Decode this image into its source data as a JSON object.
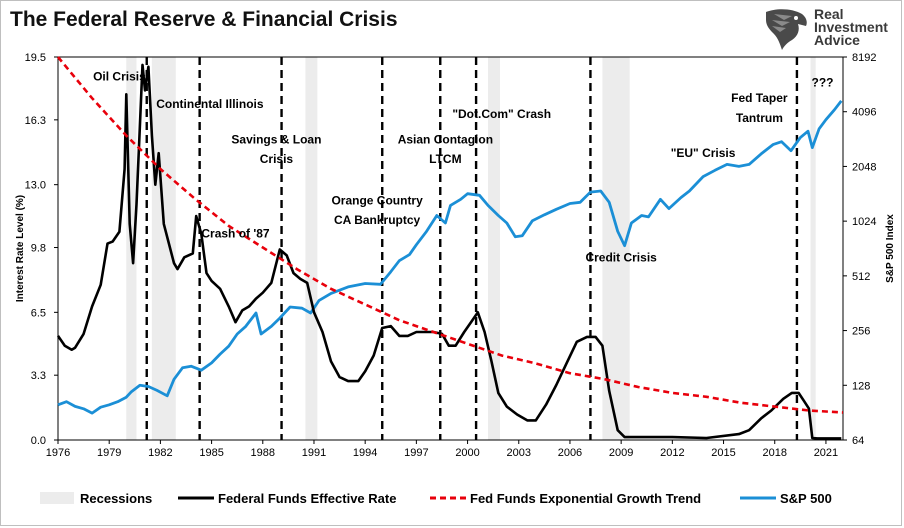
{
  "title": "The Federal Reserve & Financial Crisis",
  "logo": {
    "line1": "Real",
    "line2": "Investment",
    "line3": "Advice",
    "icon": "eagle-head-icon"
  },
  "chart_data": {
    "type": "line",
    "title": "The Federal Reserve & Financial Crisis",
    "xlabel": "",
    "ylabel_left": "Interest Rate Level (%)",
    "ylabel_right": "S&P 500 Index",
    "xlim": [
      1976,
      2022
    ],
    "ylim_left": [
      0,
      19.5
    ],
    "ylim_right": [
      64,
      8192
    ],
    "right_scale": "log2",
    "x_ticks": [
      "1976",
      "1979",
      "1982",
      "1985",
      "1988",
      "1991",
      "1994",
      "1997",
      "2000",
      "2003",
      "2006",
      "2009",
      "2012",
      "2015",
      "2018",
      "2021"
    ],
    "y_ticks_left": [
      "0.0",
      "3.3",
      "6.5",
      "9.8",
      "13.0",
      "16.3",
      "19.5"
    ],
    "y_ticks_right": [
      "64",
      "128",
      "256",
      "512",
      "1024",
      "2048",
      "4096",
      "8192"
    ],
    "colors": {
      "fed_funds": "#000000",
      "trend": "#e8000b",
      "sp500": "#1b8fd6",
      "recession": "#ececec",
      "event_line": "#000000"
    },
    "recessions": [
      [
        1980.0,
        1980.6
      ],
      [
        1981.5,
        1982.9
      ],
      [
        1990.5,
        1991.2
      ],
      [
        2001.2,
        2001.9
      ],
      [
        2007.9,
        2009.5
      ],
      [
        2020.1,
        2020.4
      ]
    ],
    "event_lines": [
      1981.2,
      1984.3,
      1989.1,
      1995.0,
      1998.4,
      2000.5,
      2007.2,
      2019.3
    ],
    "annotations": [
      {
        "text": "Oil Crisis",
        "x": 1979.6,
        "y": 18.3
      },
      {
        "text": "Continental Illinois",
        "x": 1984.9,
        "y": 16.9
      },
      {
        "text": "Crash of '87",
        "x": 1986.4,
        "y": 10.3
      },
      {
        "text": "Savings & Loan",
        "x": 1988.8,
        "y": 15.1
      },
      {
        "text": "Crisis",
        "x": 1988.8,
        "y": 14.1
      },
      {
        "text": "Orange Country",
        "x": 1994.7,
        "y": 12.0
      },
      {
        "text": "CA Bankruptcy",
        "x": 1994.7,
        "y": 11.0
      },
      {
        "text": "Asian Contagion",
        "x": 1998.7,
        "y": 15.1
      },
      {
        "text": "LTCM",
        "x": 1998.7,
        "y": 14.1
      },
      {
        "text": "\"Dot.Com\" Crash",
        "x": 2002.0,
        "y": 16.4
      },
      {
        "text": "Credit Crisis",
        "x": 2009.0,
        "y": 9.1
      },
      {
        "text": "\"EU\" Crisis",
        "x": 2013.8,
        "y": 14.4
      },
      {
        "text": "Fed Taper",
        "x": 2017.1,
        "y": 17.2
      },
      {
        "text": "Tantrum",
        "x": 2017.1,
        "y": 16.2
      },
      {
        "text": "???",
        "x": 2020.8,
        "y": 18.0
      }
    ],
    "legend_position": "bottom",
    "series": [
      {
        "name": "Federal Funds Effective Rate",
        "axis": "left",
        "style": "solid",
        "x": [
          1976.0,
          1976.4,
          1976.8,
          1977.0,
          1977.5,
          1978.0,
          1978.5,
          1978.9,
          1979.2,
          1979.6,
          1979.9,
          1980.0,
          1980.2,
          1980.4,
          1980.6,
          1980.8,
          1980.95,
          1981.1,
          1981.3,
          1981.5,
          1981.7,
          1981.9,
          1982.2,
          1982.5,
          1982.8,
          1983.0,
          1983.4,
          1983.9,
          1984.1,
          1984.4,
          1984.7,
          1985.0,
          1985.5,
          1986.0,
          1986.4,
          1986.8,
          1987.2,
          1987.6,
          1988.0,
          1988.5,
          1989.0,
          1989.4,
          1989.8,
          1990.2,
          1990.6,
          1991.0,
          1991.5,
          1992.0,
          1992.5,
          1993.0,
          1993.6,
          1994.0,
          1994.5,
          1995.0,
          1995.5,
          1996.0,
          1996.5,
          1997.0,
          1997.6,
          1998.0,
          1998.5,
          1998.9,
          1999.3,
          1999.8,
          2000.2,
          2000.6,
          2001.0,
          2001.4,
          2001.8,
          2002.3,
          2002.9,
          2003.5,
          2004.0,
          2004.6,
          2005.2,
          2005.8,
          2006.4,
          2007.0,
          2007.5,
          2007.9,
          2008.3,
          2008.8,
          2009.2,
          2010.0,
          2012.0,
          2014.0,
          2015.9,
          2016.5,
          2017.2,
          2017.8,
          2018.5,
          2019.0,
          2019.4,
          2019.7,
          2020.0,
          2020.2,
          2020.5,
          2021.5,
          2021.9
        ],
        "values": [
          5.3,
          4.8,
          4.6,
          4.7,
          5.4,
          6.8,
          7.9,
          10.0,
          10.1,
          10.6,
          13.8,
          17.6,
          11.0,
          9.0,
          12.0,
          16.0,
          19.1,
          17.8,
          19.0,
          15.5,
          13.0,
          14.6,
          11.0,
          10.0,
          9.0,
          8.7,
          9.3,
          9.5,
          11.4,
          10.5,
          8.5,
          8.1,
          7.7,
          6.8,
          6.0,
          6.6,
          6.8,
          7.2,
          7.5,
          8.0,
          9.7,
          9.4,
          8.5,
          8.2,
          8.0,
          6.5,
          5.5,
          4.0,
          3.2,
          3.0,
          3.0,
          3.5,
          4.3,
          5.7,
          5.8,
          5.3,
          5.3,
          5.5,
          5.5,
          5.5,
          5.4,
          4.8,
          4.8,
          5.5,
          6.0,
          6.5,
          5.5,
          4.0,
          2.4,
          1.7,
          1.3,
          1.0,
          1.0,
          1.8,
          2.8,
          3.9,
          5.0,
          5.25,
          5.25,
          4.8,
          2.5,
          0.5,
          0.15,
          0.15,
          0.15,
          0.1,
          0.3,
          0.5,
          1.1,
          1.5,
          2.1,
          2.4,
          2.4,
          2.0,
          1.6,
          0.1,
          0.08,
          0.08,
          0.08
        ]
      },
      {
        "name": "Fed Funds Exponential Growth Trend",
        "axis": "left",
        "style": "dashed",
        "a": 19.5,
        "k": 0.0572,
        "x0": 1976,
        "x": [
          1976,
          1978,
          1980,
          1982,
          1984,
          1986,
          1988,
          1990,
          1992,
          1994,
          1996,
          1998,
          2000,
          2002,
          2004,
          2006,
          2008,
          2010,
          2012,
          2014,
          2016,
          2018,
          2020,
          2022
        ],
        "values": [
          19.5,
          17.4,
          15.5,
          13.8,
          12.3,
          10.9,
          9.8,
          8.7,
          7.7,
          6.9,
          6.1,
          5.5,
          4.9,
          4.3,
          3.9,
          3.4,
          3.1,
          2.7,
          2.4,
          2.2,
          1.9,
          1.7,
          1.5,
          1.4
        ]
      },
      {
        "name": "S&P 500",
        "axis": "right",
        "style": "solid",
        "x": [
          1976.0,
          1976.5,
          1977.0,
          1977.5,
          1978.0,
          1978.5,
          1979.0,
          1979.5,
          1980.0,
          1980.3,
          1980.8,
          1981.3,
          1981.8,
          1982.4,
          1982.8,
          1983.3,
          1983.8,
          1984.4,
          1985.0,
          1985.5,
          1986.0,
          1986.5,
          1987.0,
          1987.6,
          1987.9,
          1988.5,
          1989.0,
          1989.6,
          1990.3,
          1990.8,
          1991.3,
          1992.0,
          1993.0,
          1994.0,
          1994.9,
          1995.5,
          1996.0,
          1996.6,
          1997.0,
          1997.6,
          1998.2,
          1998.7,
          1999.0,
          1999.6,
          2000.0,
          2000.7,
          2001.2,
          2001.8,
          2002.3,
          2002.8,
          2003.2,
          2003.8,
          2004.5,
          2005.2,
          2006.0,
          2006.6,
          2007.2,
          2007.8,
          2008.3,
          2008.8,
          2009.2,
          2009.6,
          2010.2,
          2010.6,
          2011.3,
          2011.8,
          2012.5,
          2013.0,
          2013.8,
          2014.5,
          2015.2,
          2015.9,
          2016.5,
          2017.2,
          2017.9,
          2018.4,
          2018.95,
          2019.5,
          2019.95,
          2020.2,
          2020.6,
          2021.0,
          2021.5,
          2021.9
        ],
        "values": [
          100,
          104,
          98,
          95,
          90,
          97,
          100,
          104,
          110,
          118,
          128,
          126,
          120,
          112,
          138,
          160,
          163,
          155,
          170,
          190,
          210,
          245,
          270,
          320,
          245,
          270,
          300,
          345,
          340,
          320,
          375,
          410,
          445,
          465,
          460,
          540,
          620,
          670,
          760,
          900,
          1100,
          1000,
          1250,
          1350,
          1450,
          1420,
          1250,
          1100,
          1000,
          840,
          850,
          1030,
          1110,
          1190,
          1280,
          1300,
          1480,
          1500,
          1300,
          900,
          750,
          1000,
          1100,
          1080,
          1350,
          1200,
          1380,
          1500,
          1800,
          1950,
          2100,
          2050,
          2100,
          2400,
          2700,
          2800,
          2500,
          2950,
          3200,
          2600,
          3300,
          3700,
          4200,
          4700
        ]
      }
    ]
  },
  "legend": [
    {
      "label": "Recessions",
      "swatch": "recession"
    },
    {
      "label": "Federal Funds Effective Rate",
      "swatch": "fed_funds"
    },
    {
      "label": "Fed Funds Exponential Growth Trend",
      "swatch": "trend"
    },
    {
      "label": "S&P 500",
      "swatch": "sp500"
    }
  ]
}
